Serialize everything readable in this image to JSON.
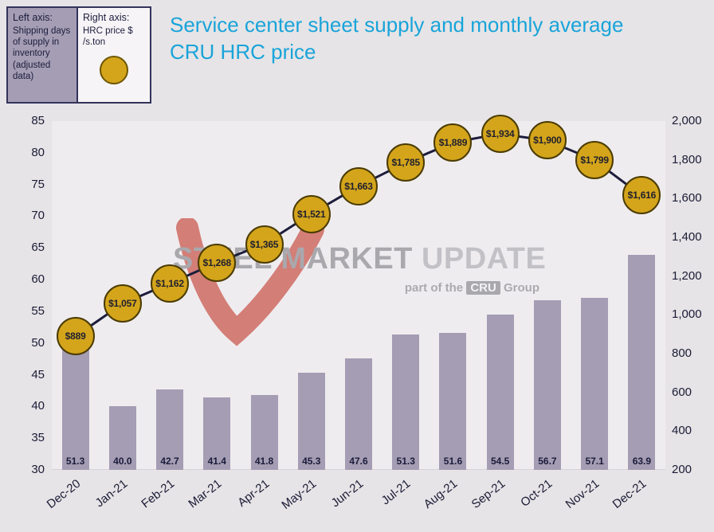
{
  "title": "Service center sheet supply and monthly average CRU HRC price",
  "legend": {
    "left_axis": {
      "title": "Left axis:",
      "description": "Shipping days of supply in inventory (adjusted data)"
    },
    "right_axis": {
      "title": "Right axis:",
      "description": "HRC price $ /s.ton"
    }
  },
  "watermark": {
    "brand_steel": "STEEL",
    "brand_market": "MARKET",
    "brand_update": "UPDATE",
    "tagline_prefix": "part of the",
    "tagline_cru": "CRU",
    "tagline_suffix": "Group"
  },
  "colors": {
    "title": "#19a4da",
    "bar": "#a49db4",
    "marker_fill": "#d4a51b",
    "marker_border": "#4a3b00",
    "line": "#1c1c3c",
    "axis_text": "#1b1b36",
    "watermark_red": "#c23b2e"
  },
  "chart_data": {
    "type": "bar+line",
    "title": "Service center sheet supply and monthly average CRU HRC price",
    "categories": [
      "Dec-20",
      "Jan-21",
      "Feb-21",
      "Mar-21",
      "Apr-21",
      "May-21",
      "Jun-21",
      "Jul-21",
      "Aug-21",
      "Sep-21",
      "Oct-21",
      "Nov-21",
      "Dec-21"
    ],
    "series": [
      {
        "name": "Shipping days of supply in inventory (adjusted data)",
        "type": "bar",
        "axis": "left",
        "values": [
          51.3,
          40.0,
          42.7,
          41.4,
          41.8,
          45.3,
          47.6,
          51.3,
          51.6,
          54.5,
          56.7,
          57.1,
          63.9
        ],
        "value_labels": [
          "51.3",
          "40.0",
          "42.7",
          "41.4",
          "41.8",
          "45.3",
          "47.6",
          "51.3",
          "51.6",
          "54.5",
          "56.7",
          "57.1",
          "63.9"
        ]
      },
      {
        "name": "HRC price $ /s.ton",
        "type": "line",
        "axis": "right",
        "values": [
          889,
          1057,
          1162,
          1268,
          1365,
          1521,
          1663,
          1785,
          1889,
          1934,
          1900,
          1799,
          1616
        ],
        "value_labels": [
          "$889",
          "$1,057",
          "$1,162",
          "$1,268",
          "$1,365",
          "$1,521",
          "$1,663",
          "$1,785",
          "$1,889",
          "$1,934",
          "$1,900",
          "$1,799",
          "$1,616"
        ]
      }
    ],
    "left_axis": {
      "min": 30,
      "max": 85,
      "tick_labels": [
        "85",
        "80",
        "75",
        "70",
        "65",
        "60",
        "55",
        "50",
        "45",
        "40",
        "35",
        "30"
      ]
    },
    "right_axis": {
      "min": 200,
      "max": 2000,
      "tick_labels": [
        "2,000",
        "1,800",
        "1,600",
        "1,400",
        "1,200",
        "1,000",
        "800",
        "600",
        "400",
        "200"
      ]
    },
    "grid": false,
    "legend_position": "top-left"
  }
}
